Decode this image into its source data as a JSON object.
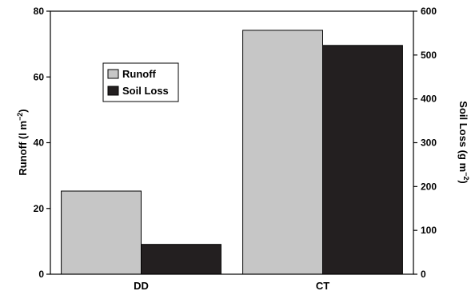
{
  "chart_data": {
    "type": "bar",
    "categories": [
      "DD",
      "CT"
    ],
    "series": [
      {
        "name": "Runoff",
        "axis": "left",
        "values": [
          25.3,
          74.2
        ],
        "color": "#c6c6c6"
      },
      {
        "name": "Soil Loss",
        "axis": "right",
        "values": [
          68,
          522
        ],
        "color": "#231f20"
      }
    ],
    "y_left": {
      "label_main": "Runoff (l m",
      "label_sup": "−2",
      "label_tail": ")",
      "lim": [
        0,
        80
      ],
      "ticks": [
        0,
        20,
        40,
        60,
        80
      ]
    },
    "y_right": {
      "label_main": "Soil Loss (g m",
      "label_sup": "−2",
      "label_tail": ")",
      "lim": [
        0,
        600
      ],
      "ticks": [
        0,
        100,
        200,
        300,
        400,
        500,
        600
      ]
    },
    "legend_position": "upper-left",
    "grid": false
  }
}
